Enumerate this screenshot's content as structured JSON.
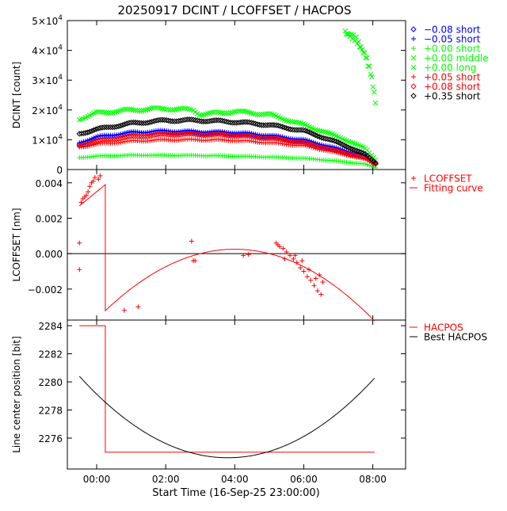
{
  "title": "20250917 DCINT / LCOFFSET / HACPOS",
  "xlabel": "Start Time (16-Sep-25 23:00:00)",
  "x_ticks": [
    {
      "value": 0,
      "label": "00:00"
    },
    {
      "value": 2,
      "label": "02:00"
    },
    {
      "value": 4,
      "label": "04:00"
    },
    {
      "value": 6,
      "label": "06:00"
    },
    {
      "value": 8,
      "label": "08:00"
    }
  ],
  "colors": {
    "black": "#000000",
    "blue": "#0000ff",
    "green": "#00ff00",
    "red": "#ff0000",
    "orange": "#ff5a00"
  },
  "chart_data": [
    {
      "type": "scatter",
      "title": "DCINT",
      "ylabel": "DCINT [count]",
      "xlim": [
        -0.85,
        8.95
      ],
      "ylim": [
        0,
        50000
      ],
      "y_ticks": [
        {
          "value": 0,
          "base": "0",
          "exp": ""
        },
        {
          "value": 10000,
          "base": "1×10",
          "exp": "4"
        },
        {
          "value": 20000,
          "base": "2×10",
          "exp": "4"
        },
        {
          "value": 30000,
          "base": "3×10",
          "exp": "4"
        },
        {
          "value": 40000,
          "base": "4×10",
          "exp": "4"
        },
        {
          "value": 50000,
          "base": "5×10",
          "exp": "4"
        }
      ],
      "series": [
        {
          "name": "-0.08 short",
          "label": "−0.08 short",
          "marker": "diamond",
          "color": "#0000ff",
          "points": [
            [
              -0.5,
              8500
            ],
            [
              0,
              10500
            ],
            [
              1,
              12000
            ],
            [
              2,
              12500
            ],
            [
              3,
              12300
            ],
            [
              4,
              12000
            ],
            [
              5,
              11000
            ],
            [
              6,
              9500
            ],
            [
              7,
              6500
            ],
            [
              7.8,
              4000
            ],
            [
              8.1,
              2000
            ]
          ]
        },
        {
          "name": "-0.05 short",
          "label": "−0.05 short",
          "marker": "plus",
          "color": "#0000ff",
          "points": [
            [
              -0.5,
              9000
            ],
            [
              0,
              11000
            ],
            [
              1,
              12500
            ],
            [
              2,
              13000
            ],
            [
              3,
              12700
            ],
            [
              4,
              12500
            ],
            [
              5,
              11500
            ],
            [
              6,
              10000
            ],
            [
              7,
              7000
            ],
            [
              7.8,
              4500
            ],
            [
              8.1,
              2000
            ]
          ]
        },
        {
          "name": "+0.00 short",
          "label": "+0.00 short",
          "marker": "plus",
          "color": "#00ff00",
          "points": [
            [
              -0.5,
              4000
            ],
            [
              0,
              4500
            ],
            [
              1,
              4800
            ],
            [
              2,
              4800
            ],
            [
              3,
              4700
            ],
            [
              4,
              4500
            ],
            [
              5,
              4200
            ],
            [
              6,
              3800
            ],
            [
              7,
              2800
            ],
            [
              7.8,
              1800
            ],
            [
              8.1,
              500
            ]
          ]
        },
        {
          "name": "+0.00 middle",
          "label": "+0.00 middle",
          "marker": "cross",
          "color": "#00ff00",
          "points": [
            [
              7.2,
              46000
            ],
            [
              7.5,
              44000
            ],
            [
              7.8,
              38000
            ],
            [
              7.95,
              32000
            ],
            [
              8.05,
              25000
            ],
            [
              8.1,
              20000
            ]
          ]
        },
        {
          "name": "+0.00 long",
          "label": "+0.00 long",
          "marker": "cross",
          "color": "#00ff00",
          "points": [
            [
              -0.5,
              17000
            ],
            [
              0,
              19000
            ],
            [
              1,
              20000
            ],
            [
              2,
              20500
            ],
            [
              2.8,
              20000
            ],
            [
              3,
              18500
            ],
            [
              4,
              19500
            ],
            [
              5,
              18500
            ],
            [
              6,
              15000
            ],
            [
              7,
              11000
            ],
            [
              7.8,
              7000
            ],
            [
              8.1,
              3000
            ]
          ]
        },
        {
          "name": "+0.05 short",
          "label": "+0.05 short",
          "marker": "plus",
          "color": "#ff0000",
          "points": [
            [
              -0.5,
              7500
            ],
            [
              0,
              8500
            ],
            [
              1,
              9500
            ],
            [
              2,
              10000
            ],
            [
              3,
              10000
            ],
            [
              4,
              9800
            ],
            [
              5,
              9000
            ],
            [
              6,
              8000
            ],
            [
              7,
              5500
            ],
            [
              7.8,
              3500
            ],
            [
              8.1,
              1500
            ]
          ]
        },
        {
          "name": "+0.08 short",
          "label": "+0.08 short",
          "marker": "diamond",
          "color": "#ff0000",
          "points": [
            [
              -0.5,
              8000
            ],
            [
              0,
              9500
            ],
            [
              1,
              11000
            ],
            [
              2,
              11800
            ],
            [
              3,
              11800
            ],
            [
              4,
              11500
            ],
            [
              5,
              10500
            ],
            [
              6,
              9000
            ],
            [
              7,
              6000
            ],
            [
              7.8,
              3800
            ],
            [
              8.1,
              1800
            ]
          ]
        },
        {
          "name": "+0.35 short",
          "label": "+0.35 short",
          "marker": "diamond",
          "color": "#000000",
          "points": [
            [
              -0.5,
              12000
            ],
            [
              0,
              13500
            ],
            [
              1,
              15500
            ],
            [
              2,
              16500
            ],
            [
              3,
              16500
            ],
            [
              4,
              16000
            ],
            [
              5,
              15000
            ],
            [
              6,
              13000
            ],
            [
              7,
              9000
            ],
            [
              7.8,
              5000
            ],
            [
              8.1,
              2000
            ]
          ]
        }
      ]
    },
    {
      "type": "scatter",
      "title": "LCOFFSET",
      "ylabel": "LCOFFSET [nm]",
      "xlim": [
        -0.85,
        8.95
      ],
      "ylim": [
        -0.00375,
        0.00475
      ],
      "y_ticks": [
        {
          "value": -0.002,
          "label": "−0.002"
        },
        {
          "value": 0,
          "label": "0.000"
        },
        {
          "value": 0.002,
          "label": "0.002"
        },
        {
          "value": 0.004,
          "label": "0.004"
        }
      ],
      "zero_line": 0,
      "legend": [
        {
          "label": "LCOFFSET",
          "marker": "plus",
          "color": "#ff0000"
        },
        {
          "label": "Fitting curve",
          "marker": "line",
          "color": "#ff0000"
        }
      ],
      "points": [
        [
          -0.5,
          -0.0009
        ],
        [
          -0.5,
          0.0006
        ],
        [
          -0.45,
          0.0029
        ],
        [
          -0.4,
          0.0031
        ],
        [
          -0.35,
          0.0032
        ],
        [
          -0.3,
          0.0033
        ],
        [
          -0.25,
          0.0035
        ],
        [
          -0.2,
          0.0038
        ],
        [
          -0.15,
          0.004
        ],
        [
          -0.1,
          0.0041
        ],
        [
          -0.05,
          0.0043
        ],
        [
          0.05,
          0.0042
        ],
        [
          0.1,
          0.0044
        ],
        [
          0.8,
          -0.0032
        ],
        [
          1.2,
          -0.003
        ],
        [
          2.75,
          0.0007
        ],
        [
          2.8,
          -0.0004
        ],
        [
          2.85,
          -0.0004
        ],
        [
          4.25,
          -0.0001
        ],
        [
          4.4,
          -5e-05
        ],
        [
          5.2,
          0.0006
        ],
        [
          5.3,
          0.0004
        ],
        [
          5.4,
          0.0003
        ],
        [
          5.5,
          0.0001
        ],
        [
          5.6,
          -0.0001
        ],
        [
          5.7,
          -0.0003
        ],
        [
          5.8,
          -0.0005
        ],
        [
          5.9,
          -0.0008
        ],
        [
          6.0,
          -0.001
        ],
        [
          6.1,
          -0.0013
        ],
        [
          6.2,
          -0.0015
        ],
        [
          6.3,
          -0.0018
        ],
        [
          6.4,
          -0.0021
        ],
        [
          6.5,
          -0.0023
        ],
        [
          6.55,
          -0.0016
        ],
        [
          5.25,
          0.0005
        ],
        [
          5.45,
          -0.0003
        ],
        [
          5.75,
          -0.0001
        ],
        [
          5.95,
          -0.0004
        ],
        [
          6.15,
          -0.0009
        ],
        [
          6.35,
          -0.0014
        ],
        [
          6.45,
          -0.0012
        ]
      ],
      "fit_segment_1": {
        "x_start": -0.5,
        "x_end": 0.25,
        "y_start": 0.0027,
        "y_end": 0.0039
      },
      "fit_drop_x": 0.25,
      "fit_drop_from": 0.0039,
      "fit_curve": {
        "vertex_x": 4.0,
        "vertex_y": 0.00025,
        "y_at_end": -0.0038,
        "x_start": 0.25,
        "x_end": 8.05
      }
    },
    {
      "type": "line",
      "title": "HACPOS",
      "ylabel": "Line center position [bit]",
      "xlim": [
        -0.85,
        8.95
      ],
      "ylim": [
        2273.8,
        2284.4
      ],
      "y_ticks": [
        2276,
        2278,
        2280,
        2282,
        2284
      ],
      "legend": [
        {
          "label": "HACPOS",
          "color": "#ff0000"
        },
        {
          "label": "Best HACPOS",
          "color": "#000000"
        }
      ],
      "hacpos_steps": [
        [
          -0.5,
          2284
        ],
        [
          0.25,
          2284
        ],
        [
          0.25,
          2275
        ],
        [
          8.05,
          2275
        ]
      ],
      "best_hacpos": {
        "vertex_x": 3.8,
        "vertex_y": 2274.6,
        "y_at_start": 2280.4,
        "x_start": -0.5,
        "x_end": 8.05
      }
    }
  ]
}
